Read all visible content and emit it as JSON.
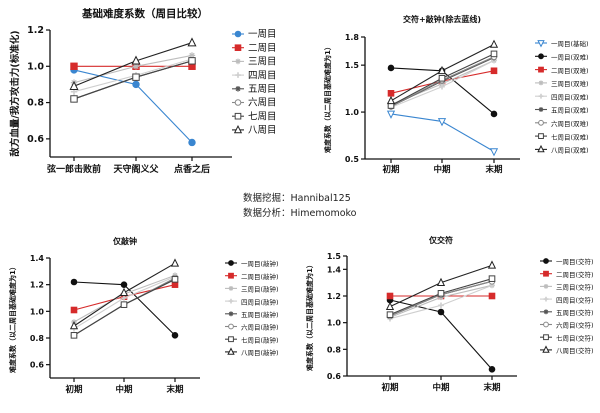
{
  "credits": {
    "mining": "数据挖掘：Hannibal125",
    "analysis": "数据分析：Himemomoko"
  },
  "chart_data": [
    {
      "type": "line",
      "title": "基础难度系数（周目比较）",
      "ylabel": "敌方血量/我方攻击力(标准化)",
      "xlabel": "",
      "categories": [
        "弦一郎击败前",
        "天守阁义父",
        "点香之后"
      ],
      "ylim": [
        0.5,
        1.2
      ],
      "yticks": [
        0.6,
        0.8,
        1.0,
        1.2
      ],
      "legend": "right",
      "series": [
        {
          "name": "一周目",
          "values": [
            0.98,
            0.9,
            0.58
          ],
          "color": "#3a86d0",
          "marker": "circle-filled"
        },
        {
          "name": "二周目",
          "values": [
            1.0,
            1.0,
            1.0
          ],
          "color": "#d62b2b",
          "marker": "square-filled"
        },
        {
          "name": "三周目",
          "values": [
            0.91,
            1.0,
            1.06
          ],
          "color": "#bdbdbd",
          "marker": "star"
        },
        {
          "name": "四周目",
          "values": [
            0.86,
            0.95,
            1.04
          ],
          "color": "#cfcfcf",
          "marker": "plus"
        },
        {
          "name": "五周目",
          "values": [
            0.82,
            0.94,
            1.03
          ],
          "color": "#555555",
          "marker": "star"
        },
        {
          "name": "六周目",
          "values": [
            0.82,
            0.94,
            1.03
          ],
          "color": "#888888",
          "marker": "circle-open"
        },
        {
          "name": "七周目",
          "values": [
            0.82,
            0.94,
            1.03
          ],
          "color": "#444444",
          "marker": "square-open"
        },
        {
          "name": "八周目",
          "values": [
            0.89,
            1.03,
            1.13
          ],
          "color": "#222222",
          "marker": "triangle-open"
        }
      ]
    },
    {
      "type": "line",
      "title": "交符+敲钟(除去蓝线)",
      "ylabel": "难度系数（以二周目基础难度为1）",
      "xlabel": "",
      "categories": [
        "初期",
        "中期",
        "末期"
      ],
      "ylim": [
        0.5,
        1.8
      ],
      "yticks": [
        0.5,
        1.0,
        1.5,
        1.8
      ],
      "legend": "right",
      "series": [
        {
          "name": "一周目(基础)",
          "values": [
            0.98,
            0.9,
            0.58
          ],
          "color": "#3a86d0",
          "marker": "triangle-down-open"
        },
        {
          "name": "一周目(双难)",
          "values": [
            1.47,
            1.44,
            0.98
          ],
          "color": "#111111",
          "marker": "circle-filled"
        },
        {
          "name": "二周目(双难)",
          "values": [
            1.2,
            1.33,
            1.44
          ],
          "color": "#d62b2b",
          "marker": "square-filled"
        },
        {
          "name": "三周目(双难)",
          "values": [
            1.08,
            1.3,
            1.55
          ],
          "color": "#bdbdbd",
          "marker": "star"
        },
        {
          "name": "四周目(双难)",
          "values": [
            1.05,
            1.27,
            1.55
          ],
          "color": "#cfcfcf",
          "marker": "plus"
        },
        {
          "name": "五周目(双难)",
          "values": [
            1.06,
            1.33,
            1.58
          ],
          "color": "#555555",
          "marker": "star"
        },
        {
          "name": "六周目(双难)",
          "values": [
            1.06,
            1.34,
            1.59
          ],
          "color": "#888888",
          "marker": "circle-open"
        },
        {
          "name": "七周目(双难)",
          "values": [
            1.07,
            1.36,
            1.62
          ],
          "color": "#444444",
          "marker": "square-open"
        },
        {
          "name": "八周目(双难)",
          "values": [
            1.12,
            1.44,
            1.72
          ],
          "color": "#222222",
          "marker": "triangle-open"
        }
      ]
    },
    {
      "type": "line",
      "title": "仅敲钟",
      "ylabel": "难度系数（以二周目基础难度为1）",
      "xlabel": "",
      "categories": [
        "初期",
        "中期",
        "末期"
      ],
      "ylim": [
        0.5,
        1.4
      ],
      "yticks": [
        0.6,
        0.8,
        1.0,
        1.2,
        1.4
      ],
      "legend": "right",
      "series": [
        {
          "name": "一周目(敲钟)",
          "values": [
            1.22,
            1.2,
            0.82
          ],
          "color": "#111111",
          "marker": "circle-filled"
        },
        {
          "name": "二周目(敲钟)",
          "values": [
            1.01,
            1.11,
            1.2
          ],
          "color": "#d62b2b",
          "marker": "square-filled"
        },
        {
          "name": "三周目(敲钟)",
          "values": [
            0.92,
            1.13,
            1.27
          ],
          "color": "#bdbdbd",
          "marker": "star"
        },
        {
          "name": "四周目(敲钟)",
          "values": [
            0.87,
            1.1,
            1.26
          ],
          "color": "#cfcfcf",
          "marker": "plus"
        },
        {
          "name": "五周目(敲钟)",
          "values": [
            0.82,
            1.05,
            1.24
          ],
          "color": "#555555",
          "marker": "star"
        },
        {
          "name": "六周目(敲钟)",
          "values": [
            0.82,
            1.05,
            1.25
          ],
          "color": "#888888",
          "marker": "circle-open"
        },
        {
          "name": "七周目(敲钟)",
          "values": [
            0.82,
            1.05,
            1.24
          ],
          "color": "#444444",
          "marker": "square-open"
        },
        {
          "name": "八周目(敲钟)",
          "values": [
            0.89,
            1.14,
            1.36
          ],
          "color": "#222222",
          "marker": "triangle-open"
        }
      ]
    },
    {
      "type": "line",
      "title": "仅交符",
      "ylabel": "难度系数（以二周目基础难度为1）",
      "xlabel": "",
      "categories": [
        "初期",
        "中期",
        "末期"
      ],
      "ylim": [
        0.6,
        1.5
      ],
      "yticks": [
        0.6,
        0.8,
        1.0,
        1.2,
        1.4,
        1.5
      ],
      "legend": "right",
      "series": [
        {
          "name": "一周目(交符)",
          "values": [
            1.17,
            1.08,
            0.65
          ],
          "color": "#111111",
          "marker": "circle-filled"
        },
        {
          "name": "二周目(交符)",
          "values": [
            1.2,
            1.2,
            1.2
          ],
          "color": "#d62b2b",
          "marker": "square-filled"
        },
        {
          "name": "三周目(交符)",
          "values": [
            1.04,
            1.19,
            1.28
          ],
          "color": "#bdbdbd",
          "marker": "star"
        },
        {
          "name": "四周目(交符)",
          "values": [
            1.03,
            1.13,
            1.28
          ],
          "color": "#cfcfcf",
          "marker": "plus"
        },
        {
          "name": "五周目(交符)",
          "values": [
            1.05,
            1.21,
            1.31
          ],
          "color": "#555555",
          "marker": "star"
        },
        {
          "name": "六周目(交符)",
          "values": [
            1.05,
            1.21,
            1.31
          ],
          "color": "#888888",
          "marker": "circle-open"
        },
        {
          "name": "七周目(交符)",
          "values": [
            1.06,
            1.22,
            1.33
          ],
          "color": "#444444",
          "marker": "square-open"
        },
        {
          "name": "八周目(交符)",
          "values": [
            1.12,
            1.3,
            1.43
          ],
          "color": "#222222",
          "marker": "triangle-open"
        }
      ]
    }
  ]
}
